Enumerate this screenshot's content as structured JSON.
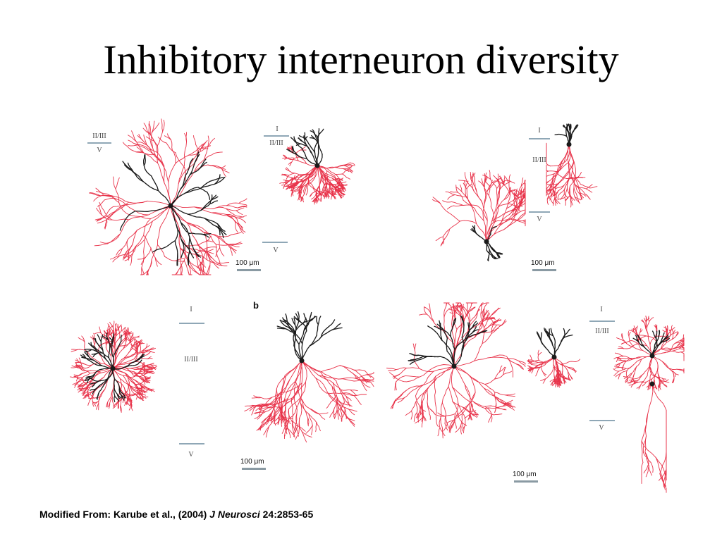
{
  "title": "Inhibitory interneuron diversity",
  "panel_letter": "b",
  "layer_labels": {
    "p1_top": "II/III",
    "p1_bottom": "V",
    "p2_top": "I",
    "p2_mid": "II/III",
    "p2_bottom": "V",
    "p4_top": "I",
    "p4_mid": "II/III",
    "p4_bottom": "V",
    "p5_top": "I",
    "p5_mid": "II/III",
    "p5_bottom": "V",
    "p7_top": "I",
    "p7_mid": "II/III",
    "p7_bottom": "V"
  },
  "scale_labels": {
    "s1": "100 μm",
    "s2": "100 μm",
    "s3": "100 μm",
    "s4": "100 μm"
  },
  "caption": {
    "prefix": "Modified From: Karube et al., (2004) ",
    "journal": "J Neurosci",
    "suffix": " 24:2853-65"
  },
  "colors": {
    "axon": "#e8334a",
    "dendrite": "#1a1a1a",
    "layer_line": "#8fa7b6"
  }
}
